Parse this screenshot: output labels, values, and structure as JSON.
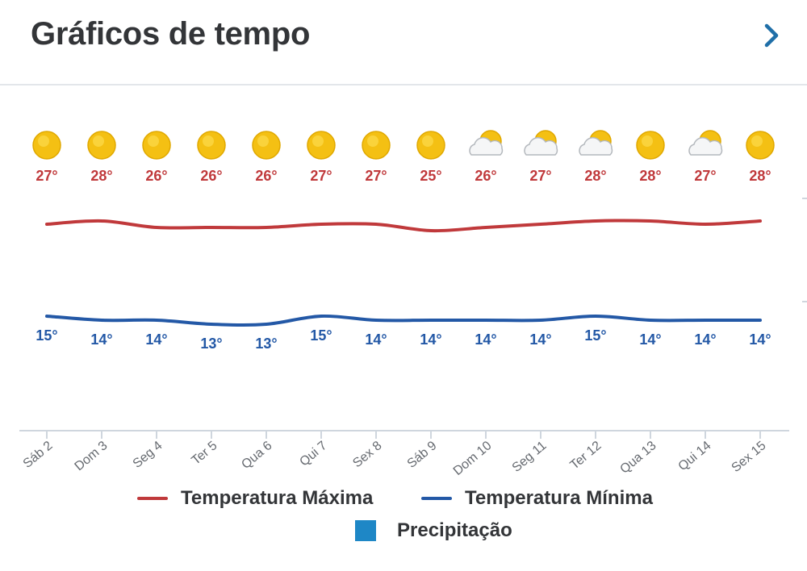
{
  "header": {
    "title": "Gráficos de tempo",
    "next_icon": "chevron-right-icon"
  },
  "chart_data": {
    "type": "line",
    "categories": [
      "Sáb 2",
      "Dom 3",
      "Seg 4",
      "Ter 5",
      "Qua 6",
      "Qui 7",
      "Sex 8",
      "Sáb 9",
      "Dom 10",
      "Seg 11",
      "Ter 12",
      "Qua 13",
      "Qui 14",
      "Sex 15"
    ],
    "icons": [
      "sun-icon",
      "sun-icon",
      "sun-icon",
      "sun-icon",
      "sun-icon",
      "sun-icon",
      "sun-icon",
      "sun-icon",
      "partly-cloudy-icon",
      "partly-cloudy-icon",
      "partly-cloudy-icon",
      "sun-icon",
      "partly-cloudy-icon",
      "sun-icon"
    ],
    "series": [
      {
        "name": "Temperatura Máxima",
        "color": "#c0393b",
        "values": [
          27,
          28,
          26,
          26,
          26,
          27,
          27,
          25,
          26,
          27,
          28,
          28,
          27,
          28
        ],
        "labels": [
          "27°",
          "28°",
          "26°",
          "26°",
          "26°",
          "27°",
          "27°",
          "25°",
          "26°",
          "27°",
          "28°",
          "28°",
          "27°",
          "28°"
        ]
      },
      {
        "name": "Temperatura Mínima",
        "color": "#2358a6",
        "values": [
          15,
          14,
          14,
          13,
          13,
          15,
          14,
          14,
          14,
          14,
          15,
          14,
          14,
          14
        ],
        "labels": [
          "15°",
          "14°",
          "14°",
          "13°",
          "13°",
          "15°",
          "14°",
          "14°",
          "14°",
          "14°",
          "15°",
          "14°",
          "14°",
          "14°"
        ]
      }
    ],
    "precipitation": {
      "name": "Precipitação",
      "color": "#1e87c6"
    },
    "legend_position": "bottom"
  }
}
